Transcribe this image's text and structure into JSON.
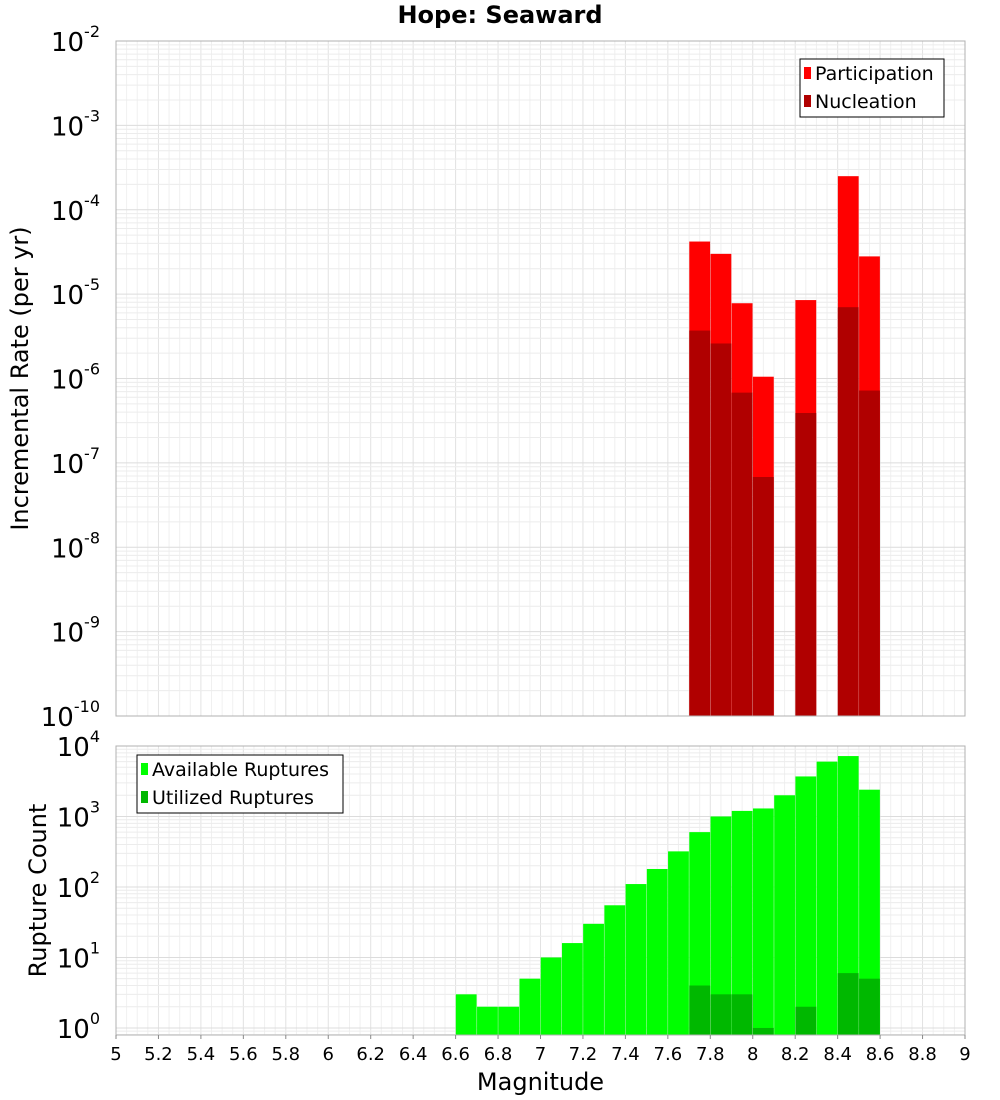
{
  "chart_data": {
    "title": "Hope: Seaward",
    "x_axis": {
      "label": "Magnitude",
      "range": [
        5,
        9
      ],
      "ticks": [
        5,
        5.2,
        5.4,
        5.6,
        5.8,
        6,
        6.2,
        6.4,
        6.6,
        6.8,
        7,
        7.2,
        7.4,
        7.6,
        7.8,
        8,
        8.2,
        8.4,
        8.6,
        8.8,
        9
      ],
      "tick_labels": [
        "5",
        "5.2",
        "5.4",
        "5.6",
        "5.8",
        "6",
        "6.2",
        "6.4",
        "6.6",
        "6.8",
        "7",
        "7.2",
        "7.4",
        "7.6",
        "7.8",
        "8",
        "8.2",
        "8.4",
        "8.6",
        "8.8",
        "9"
      ]
    },
    "panels": [
      {
        "id": "rate",
        "type": "bar",
        "scale": "log",
        "ylabel": "Incremental Rate (per yr)",
        "ylim_exponents": [
          -10,
          -2
        ],
        "y_ticks": [
          {
            "base": "10",
            "exp": "-2"
          },
          {
            "base": "10",
            "exp": "-3"
          },
          {
            "base": "10",
            "exp": "-4"
          },
          {
            "base": "10",
            "exp": "-5"
          },
          {
            "base": "10",
            "exp": "-6"
          },
          {
            "base": "10",
            "exp": "-7"
          },
          {
            "base": "10",
            "exp": "-8"
          },
          {
            "base": "10",
            "exp": "-9"
          },
          {
            "base": "10",
            "exp": "-10"
          }
        ],
        "legend": {
          "position": "top-right",
          "entries": [
            "Participation",
            "Nucleation"
          ]
        },
        "series": [
          {
            "name": "Participation",
            "color": "#ff0000",
            "x": [
              7.75,
              7.85,
              7.95,
              8.05,
              8.25,
              8.45,
              8.55
            ],
            "values": [
              4.2e-05,
              3e-05,
              7.8e-06,
              1.05e-06,
              8.5e-06,
              0.00025,
              2.8e-05
            ]
          },
          {
            "name": "Nucleation",
            "color": "#b00000",
            "x": [
              7.75,
              7.85,
              7.95,
              8.05,
              8.25,
              8.45,
              8.55
            ],
            "values": [
              3.7e-06,
              2.6e-06,
              6.8e-07,
              6.8e-08,
              3.9e-07,
              7e-06,
              7.2e-07
            ]
          }
        ]
      },
      {
        "id": "count",
        "type": "bar",
        "scale": "log",
        "ylabel": "Rupture Count",
        "ylim_exponents": [
          -0.1,
          4
        ],
        "y_ticks": [
          {
            "base": "10",
            "exp": "4"
          },
          {
            "base": "10",
            "exp": "3"
          },
          {
            "base": "10",
            "exp": "2"
          },
          {
            "base": "10",
            "exp": "1"
          },
          {
            "base": "10",
            "exp": "0"
          }
        ],
        "legend": {
          "position": "top-left",
          "entries": [
            "Available Ruptures",
            "Utilized Ruptures"
          ]
        },
        "series": [
          {
            "name": "Available Ruptures",
            "color": "#00ff00",
            "x": [
              6.65,
              6.75,
              6.85,
              6.95,
              7.05,
              7.15,
              7.25,
              7.35,
              7.45,
              7.55,
              7.65,
              7.75,
              7.85,
              7.95,
              8.05,
              8.15,
              8.25,
              8.35,
              8.45,
              8.55
            ],
            "values": [
              3,
              2,
              2,
              5,
              10,
              16,
              30,
              55,
              110,
              180,
              320,
              600,
              1000,
              1200,
              1300,
              2000,
              3700,
              6000,
              7200,
              2400
            ]
          },
          {
            "name": "Utilized Ruptures",
            "color": "#00b800",
            "x": [
              7.75,
              7.85,
              7.95,
              8.05,
              8.25,
              8.45,
              8.55
            ],
            "values": [
              4,
              3,
              3,
              1,
              2,
              6,
              5
            ]
          }
        ]
      }
    ]
  }
}
